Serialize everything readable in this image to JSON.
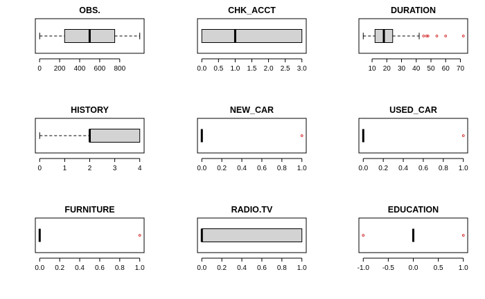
{
  "style": {
    "box_fill": "#d3d3d3",
    "outlier_color": "#cc0000",
    "line_color": "#000000"
  },
  "chart_data": [
    {
      "type": "boxplot",
      "title": "OBS.",
      "orientation": "horizontal",
      "xlim": [
        1,
        1000
      ],
      "ticks": [
        0,
        200,
        400,
        600,
        800
      ],
      "tick_labels": [
        "0",
        "200",
        "400",
        "600",
        "800"
      ],
      "whisker_low": 1,
      "q1": 250,
      "median": 500,
      "q3": 750,
      "whisker_high": 1000,
      "outliers": []
    },
    {
      "type": "boxplot",
      "title": "CHK_ACCT",
      "orientation": "horizontal",
      "xlim": [
        0,
        3
      ],
      "ticks": [
        0,
        0.5,
        1,
        1.5,
        2,
        2.5,
        3
      ],
      "tick_labels": [
        "0.0",
        "0.5",
        "1.0",
        "1.5",
        "2.0",
        "2.5",
        "3.0"
      ],
      "whisker_low": 0,
      "q1": 0,
      "median": 1,
      "q3": 3,
      "whisker_high": 3,
      "outliers": []
    },
    {
      "type": "boxplot",
      "title": "DURATION",
      "orientation": "horizontal",
      "xlim": [
        4,
        72
      ],
      "ticks": [
        10,
        20,
        30,
        40,
        50,
        60,
        70
      ],
      "tick_labels": [
        "10",
        "20",
        "30",
        "40",
        "50",
        "60",
        "70"
      ],
      "whisker_low": 4,
      "q1": 12,
      "median": 18,
      "q3": 24,
      "whisker_high": 42,
      "outliers": [
        45,
        47,
        48,
        54,
        60,
        72
      ]
    },
    {
      "type": "boxplot",
      "title": "HISTORY",
      "orientation": "horizontal",
      "xlim": [
        0,
        4
      ],
      "ticks": [
        0,
        1,
        2,
        3,
        4
      ],
      "tick_labels": [
        "0",
        "1",
        "2",
        "3",
        "4"
      ],
      "whisker_low": 0,
      "q1": 2,
      "median": 2,
      "q3": 4,
      "whisker_high": 4,
      "outliers": []
    },
    {
      "type": "boxplot",
      "title": "NEW_CAR",
      "orientation": "horizontal",
      "xlim": [
        0,
        1
      ],
      "ticks": [
        0,
        0.2,
        0.4,
        0.6,
        0.8,
        1
      ],
      "tick_labels": [
        "0.0",
        "0.2",
        "0.4",
        "0.6",
        "0.8",
        "1.0"
      ],
      "whisker_low": 0,
      "q1": 0,
      "median": 0,
      "q3": 0,
      "whisker_high": 0,
      "outliers": [
        1
      ]
    },
    {
      "type": "boxplot",
      "title": "USED_CAR",
      "orientation": "horizontal",
      "xlim": [
        0,
        1
      ],
      "ticks": [
        0,
        0.2,
        0.4,
        0.6,
        0.8,
        1
      ],
      "tick_labels": [
        "0.0",
        "0.2",
        "0.4",
        "0.6",
        "0.8",
        "1.0"
      ],
      "whisker_low": 0,
      "q1": 0,
      "median": 0,
      "q3": 0,
      "whisker_high": 0,
      "outliers": [
        1
      ]
    },
    {
      "type": "boxplot",
      "title": "FURNITURE",
      "orientation": "horizontal",
      "xlim": [
        0,
        1
      ],
      "ticks": [
        0,
        0.2,
        0.4,
        0.6,
        0.8,
        1
      ],
      "tick_labels": [
        "0.0",
        "0.2",
        "0.4",
        "0.6",
        "0.8",
        "1.0"
      ],
      "whisker_low": 0,
      "q1": 0,
      "median": 0,
      "q3": 0,
      "whisker_high": 0,
      "outliers": [
        1
      ]
    },
    {
      "type": "boxplot",
      "title": "RADIO.TV",
      "orientation": "horizontal",
      "xlim": [
        0,
        1
      ],
      "ticks": [
        0,
        0.2,
        0.4,
        0.6,
        0.8,
        1
      ],
      "tick_labels": [
        "0.0",
        "0.2",
        "0.4",
        "0.6",
        "0.8",
        "1.0"
      ],
      "whisker_low": 0,
      "q1": 0,
      "median": 0,
      "q3": 1,
      "whisker_high": 1,
      "outliers": []
    },
    {
      "type": "boxplot",
      "title": "EDUCATION",
      "orientation": "horizontal",
      "xlim": [
        -1,
        1
      ],
      "ticks": [
        -1,
        -0.5,
        0,
        0.5,
        1
      ],
      "tick_labels": [
        "-1.0",
        "-0.5",
        "0.0",
        "0.5",
        "1.0"
      ],
      "whisker_low": 0,
      "q1": 0,
      "median": 0,
      "q3": 0,
      "whisker_high": 0,
      "outliers": [
        -1,
        1
      ]
    }
  ]
}
